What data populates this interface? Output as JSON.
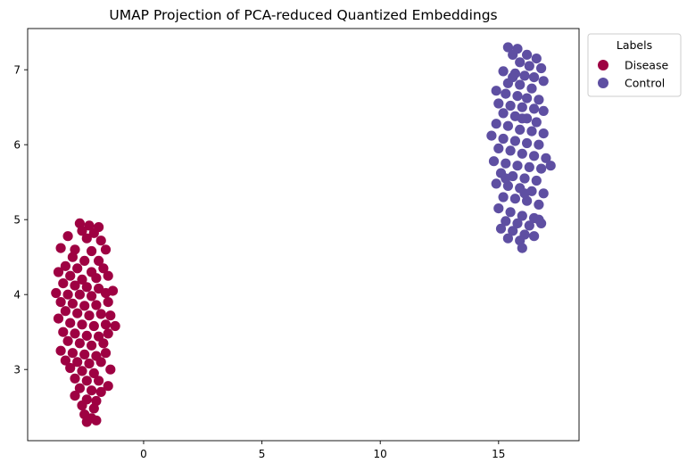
{
  "chart_data": {
    "type": "scatter",
    "title": "UMAP Projection of PCA-reduced Quantized Embeddings",
    "xlabel": "",
    "ylabel": "",
    "xlim": [
      -4.9,
      18.4
    ],
    "ylim": [
      2.05,
      7.55
    ],
    "xticks": [
      0,
      5,
      10,
      15
    ],
    "yticks": [
      3,
      4,
      5,
      6,
      7
    ],
    "grid": false,
    "legend": {
      "title": "Labels",
      "placement": "upper right, outside plot"
    },
    "series": [
      {
        "name": "Disease",
        "color": "#9e0142",
        "points": [
          [
            -2.7,
            4.95
          ],
          [
            -2.3,
            4.92
          ],
          [
            -1.9,
            4.9
          ],
          [
            -2.6,
            4.85
          ],
          [
            -2.1,
            4.82
          ],
          [
            -3.2,
            4.78
          ],
          [
            -2.4,
            4.75
          ],
          [
            -1.8,
            4.72
          ],
          [
            -3.5,
            4.62
          ],
          [
            -2.9,
            4.6
          ],
          [
            -2.2,
            4.58
          ],
          [
            -1.6,
            4.6
          ],
          [
            -3.0,
            4.5
          ],
          [
            -2.5,
            4.45
          ],
          [
            -1.9,
            4.45
          ],
          [
            -3.3,
            4.38
          ],
          [
            -2.8,
            4.35
          ],
          [
            -2.2,
            4.3
          ],
          [
            -1.7,
            4.35
          ],
          [
            -3.6,
            4.3
          ],
          [
            -3.1,
            4.25
          ],
          [
            -2.6,
            4.2
          ],
          [
            -2.0,
            4.22
          ],
          [
            -1.5,
            4.25
          ],
          [
            -3.4,
            4.15
          ],
          [
            -2.9,
            4.12
          ],
          [
            -2.4,
            4.1
          ],
          [
            -1.9,
            4.08
          ],
          [
            -3.7,
            4.02
          ],
          [
            -3.2,
            4.0
          ],
          [
            -2.7,
            4.0
          ],
          [
            -2.2,
            3.98
          ],
          [
            -1.6,
            4.02
          ],
          [
            -1.3,
            4.05
          ],
          [
            -3.5,
            3.9
          ],
          [
            -3.0,
            3.88
          ],
          [
            -2.5,
            3.85
          ],
          [
            -2.0,
            3.86
          ],
          [
            -1.5,
            3.9
          ],
          [
            -3.3,
            3.78
          ],
          [
            -2.8,
            3.75
          ],
          [
            -2.3,
            3.72
          ],
          [
            -1.8,
            3.74
          ],
          [
            -1.4,
            3.72
          ],
          [
            -3.6,
            3.68
          ],
          [
            -3.1,
            3.62
          ],
          [
            -2.6,
            3.6
          ],
          [
            -2.1,
            3.58
          ],
          [
            -1.6,
            3.6
          ],
          [
            -1.2,
            3.58
          ],
          [
            -3.4,
            3.5
          ],
          [
            -2.9,
            3.48
          ],
          [
            -2.4,
            3.45
          ],
          [
            -1.9,
            3.44
          ],
          [
            -1.5,
            3.48
          ],
          [
            -3.2,
            3.38
          ],
          [
            -2.7,
            3.35
          ],
          [
            -2.2,
            3.32
          ],
          [
            -1.7,
            3.35
          ],
          [
            -3.5,
            3.25
          ],
          [
            -3.0,
            3.22
          ],
          [
            -2.5,
            3.2
          ],
          [
            -2.0,
            3.18
          ],
          [
            -1.6,
            3.22
          ],
          [
            -3.3,
            3.12
          ],
          [
            -2.8,
            3.1
          ],
          [
            -2.3,
            3.08
          ],
          [
            -1.8,
            3.1
          ],
          [
            -1.4,
            3.0
          ],
          [
            -3.1,
            3.02
          ],
          [
            -2.6,
            2.98
          ],
          [
            -2.1,
            2.95
          ],
          [
            -2.9,
            2.88
          ],
          [
            -2.4,
            2.85
          ],
          [
            -1.9,
            2.85
          ],
          [
            -1.5,
            2.78
          ],
          [
            -2.7,
            2.75
          ],
          [
            -2.2,
            2.72
          ],
          [
            -1.8,
            2.7
          ],
          [
            -2.9,
            2.65
          ],
          [
            -2.4,
            2.6
          ],
          [
            -2.0,
            2.58
          ],
          [
            -2.6,
            2.52
          ],
          [
            -2.1,
            2.48
          ],
          [
            -2.5,
            2.4
          ],
          [
            -2.2,
            2.35
          ],
          [
            -2.4,
            2.3
          ],
          [
            -2.0,
            2.32
          ]
        ]
      },
      {
        "name": "Control",
        "color": "#5e4fa2",
        "points": [
          [
            15.4,
            7.3
          ],
          [
            15.8,
            7.28
          ],
          [
            16.2,
            7.2
          ],
          [
            15.6,
            7.2
          ],
          [
            16.6,
            7.15
          ],
          [
            15.9,
            7.1
          ],
          [
            16.3,
            7.05
          ],
          [
            16.8,
            7.02
          ],
          [
            15.2,
            6.98
          ],
          [
            15.7,
            6.95
          ],
          [
            16.1,
            6.92
          ],
          [
            16.5,
            6.9
          ],
          [
            16.9,
            6.85
          ],
          [
            15.4,
            6.82
          ],
          [
            15.9,
            6.8
          ],
          [
            16.4,
            6.75
          ],
          [
            14.9,
            6.72
          ],
          [
            15.3,
            6.68
          ],
          [
            15.8,
            6.65
          ],
          [
            16.2,
            6.62
          ],
          [
            16.7,
            6.6
          ],
          [
            15.0,
            6.55
          ],
          [
            15.5,
            6.52
          ],
          [
            16.0,
            6.5
          ],
          [
            16.5,
            6.48
          ],
          [
            16.9,
            6.45
          ],
          [
            15.2,
            6.42
          ],
          [
            15.7,
            6.38
          ],
          [
            16.2,
            6.35
          ],
          [
            16.6,
            6.3
          ],
          [
            14.9,
            6.28
          ],
          [
            15.4,
            6.25
          ],
          [
            15.9,
            6.2
          ],
          [
            16.4,
            6.18
          ],
          [
            16.9,
            6.15
          ],
          [
            14.7,
            6.12
          ],
          [
            15.2,
            6.08
          ],
          [
            15.7,
            6.05
          ],
          [
            16.2,
            6.02
          ],
          [
            16.7,
            6.0
          ],
          [
            15.0,
            5.95
          ],
          [
            15.5,
            5.92
          ],
          [
            16.0,
            5.88
          ],
          [
            16.5,
            5.85
          ],
          [
            17.0,
            5.82
          ],
          [
            14.8,
            5.78
          ],
          [
            15.3,
            5.75
          ],
          [
            15.8,
            5.72
          ],
          [
            16.3,
            5.7
          ],
          [
            16.8,
            5.68
          ],
          [
            17.2,
            5.72
          ],
          [
            15.1,
            5.62
          ],
          [
            15.6,
            5.58
          ],
          [
            16.1,
            5.55
          ],
          [
            16.6,
            5.52
          ],
          [
            14.9,
            5.48
          ],
          [
            15.4,
            5.45
          ],
          [
            15.9,
            5.42
          ],
          [
            16.4,
            5.38
          ],
          [
            16.9,
            5.35
          ],
          [
            15.2,
            5.3
          ],
          [
            15.7,
            5.28
          ],
          [
            16.2,
            5.25
          ],
          [
            16.7,
            5.2
          ],
          [
            15.0,
            5.15
          ],
          [
            15.5,
            5.1
          ],
          [
            16.0,
            5.05
          ],
          [
            16.5,
            5.02
          ],
          [
            15.3,
            4.98
          ],
          [
            15.8,
            4.95
          ],
          [
            16.3,
            4.92
          ],
          [
            16.8,
            4.95
          ],
          [
            15.1,
            4.88
          ],
          [
            15.6,
            4.85
          ],
          [
            16.1,
            4.8
          ],
          [
            16.5,
            4.78
          ],
          [
            15.4,
            4.75
          ],
          [
            15.9,
            4.72
          ],
          [
            16.0,
            4.62
          ],
          [
            16.7,
            5.0
          ],
          [
            16.1,
            5.35
          ],
          [
            15.6,
            6.9
          ],
          [
            16.0,
            6.35
          ],
          [
            15.3,
            5.55
          ]
        ]
      }
    ]
  }
}
